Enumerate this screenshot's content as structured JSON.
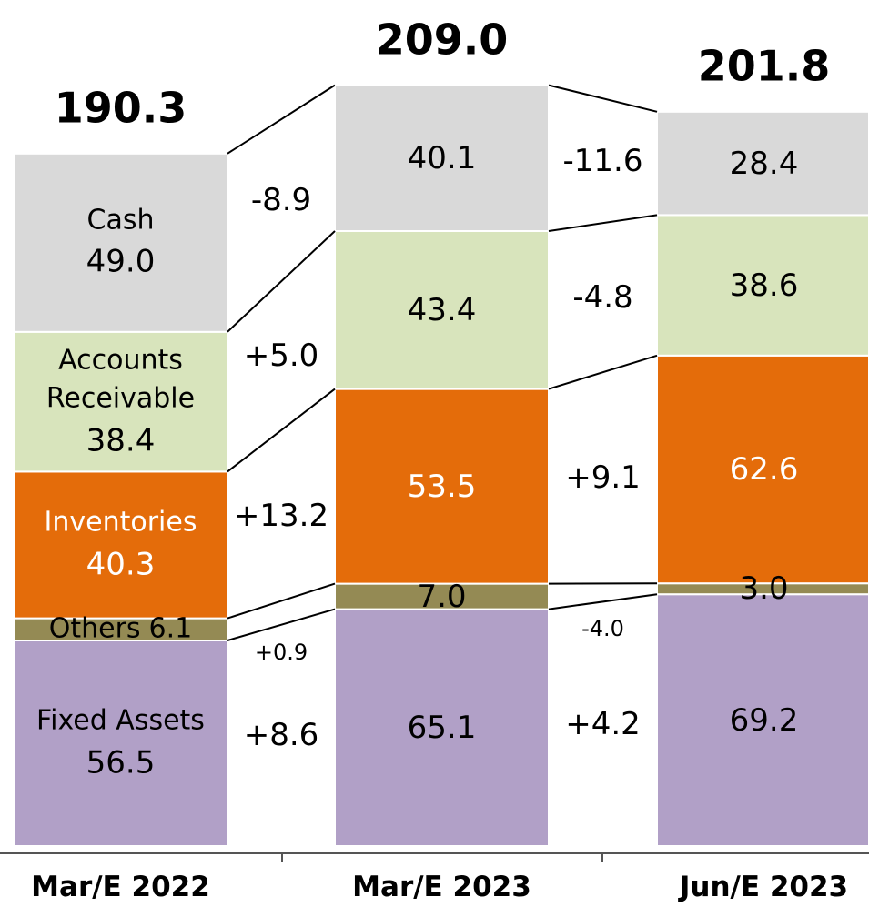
{
  "chart_data": {
    "type": "stacked_bar",
    "categories": [
      "Mar/E 2022",
      "Mar/E 2023",
      "Jun/E 2023"
    ],
    "totals": [
      190.3,
      209.0,
      201.8
    ],
    "total_labels": [
      "190.3",
      "209.0",
      "201.8"
    ],
    "series": [
      {
        "name": "Fixed Assets",
        "color": "#b1a0c7",
        "values": [
          56.5,
          65.1,
          69.2
        ],
        "value_labels": [
          "56.5",
          "65.1",
          "69.2"
        ],
        "changes": [
          8.6,
          4.2
        ],
        "change_labels": [
          "+8.6",
          "+4.2"
        ]
      },
      {
        "name": "Others",
        "color": "#948a54",
        "values": [
          6.1,
          7.0,
          3.0
        ],
        "value_labels": [
          "6.1",
          "7.0",
          "3.0"
        ],
        "changes": [
          0.9,
          -4.0
        ],
        "change_labels": [
          "+0.9",
          "-4.0"
        ]
      },
      {
        "name": "Inventories",
        "color": "#e46c0a",
        "label_color": "#ffffff",
        "values": [
          40.3,
          53.5,
          62.6
        ],
        "value_labels": [
          "40.3",
          "53.5",
          "62.6"
        ],
        "changes": [
          13.2,
          9.1
        ],
        "change_labels": [
          "+13.2",
          "+9.1"
        ]
      },
      {
        "name": "Accounts Receivable",
        "color": "#d8e4bc",
        "values": [
          38.4,
          43.4,
          38.6
        ],
        "value_labels": [
          "38.4",
          "43.4",
          "38.6"
        ],
        "changes": [
          5.0,
          -4.8
        ],
        "change_labels": [
          "+5.0",
          "-4.8"
        ]
      },
      {
        "name": "Cash",
        "color": "#d9d9d9",
        "values": [
          49.0,
          40.1,
          28.4
        ],
        "value_labels": [
          "49.0",
          "40.1",
          "28.4"
        ],
        "changes": [
          -8.9,
          -11.6
        ],
        "change_labels": [
          "-8.9",
          "-11.6"
        ]
      }
    ]
  }
}
